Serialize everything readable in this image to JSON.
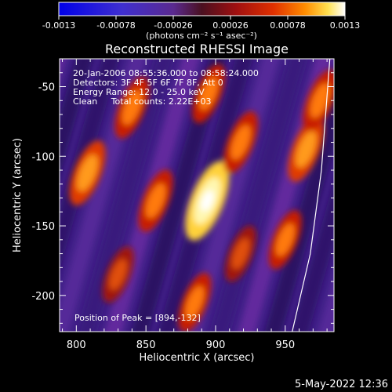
{
  "chart_data": {
    "type": "heatmap",
    "title": "Reconstructed RHESSI Image",
    "xlabel": "Heliocentric X (arcsec)",
    "ylabel": "Heliocentric Y (arcsec)",
    "xlim": [
      788,
      985
    ],
    "ylim": [
      -226,
      -30
    ],
    "x_ticks": [
      "800",
      "850",
      "900",
      "950"
    ],
    "y_ticks": [
      "-50",
      "-100",
      "-150",
      "-200"
    ],
    "colorbar": {
      "min": -0.0013,
      "max": 0.0013,
      "tick_labels": [
        "-0.0013",
        "-0.00078",
        "-0.00026",
        "0.00026",
        "0.00078",
        "0.0013"
      ],
      "unit": "(photons cm⁻² s⁻¹ asec⁻²)",
      "colormap": "rhessi-purple-red-yellow"
    },
    "info_lines": [
      "20-Jan-2006 08:55:36.000 to 08:58:24.000",
      "Detectors: 3F 4F 5F 6F 7F 8F, Att 0",
      "Energy Range: 12.0 - 25.0 keV",
      "Clean     Total counts: 2.22E+03"
    ],
    "peak_label": "Position of Peak = [894,-132]",
    "peak": [
      894,
      -132
    ],
    "peak_value": 0.0013,
    "bright_sources": [
      {
        "x": 894,
        "y": -132,
        "value": 0.0013
      },
      {
        "x": 808,
        "y": -112,
        "value": 0.0008
      },
      {
        "x": 840,
        "y": -65,
        "value": 0.0007
      },
      {
        "x": 857,
        "y": -132,
        "value": 0.0007
      },
      {
        "x": 918,
        "y": -90,
        "value": 0.0007
      },
      {
        "x": 965,
        "y": -95,
        "value": 0.0008
      },
      {
        "x": 950,
        "y": -160,
        "value": 0.0006
      },
      {
        "x": 885,
        "y": -205,
        "value": 0.0006
      },
      {
        "x": 830,
        "y": -185,
        "value": 0.0005
      },
      {
        "x": 975,
        "y": -60,
        "value": 0.0007
      },
      {
        "x": 895,
        "y": -55,
        "value": 0.0006
      },
      {
        "x": 918,
        "y": -170,
        "value": 0.0005
      }
    ],
    "limb_curve": {
      "x": [
        955,
        968,
        976,
        982
      ],
      "y": [
        -226,
        -170,
        -110,
        -30
      ]
    }
  },
  "timestamp": "5-May-2022 12:36"
}
